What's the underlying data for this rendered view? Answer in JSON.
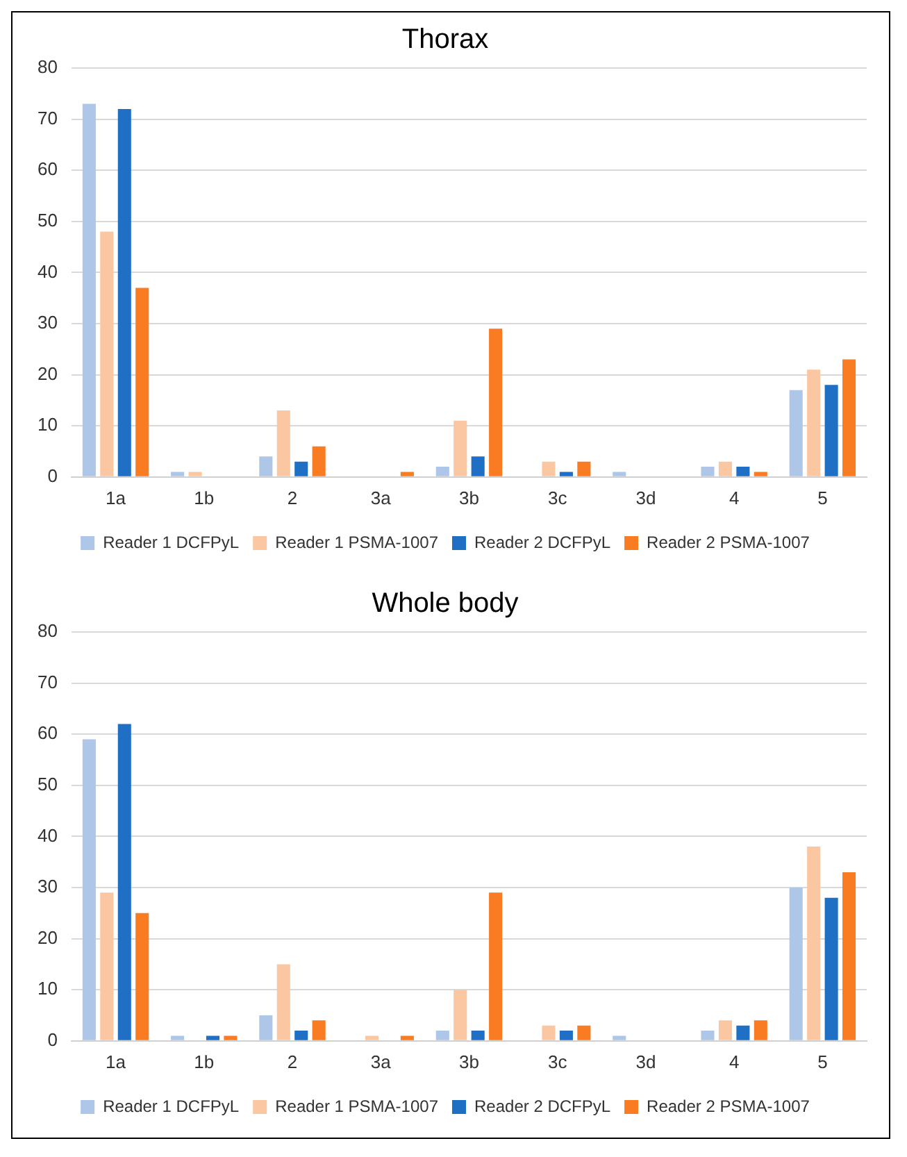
{
  "chart_data": [
    {
      "type": "bar",
      "title": "Thorax",
      "categories": [
        "1a",
        "1b",
        "2",
        "3a",
        "3b",
        "3c",
        "3d",
        "4",
        "5"
      ],
      "ylim": [
        0,
        80
      ],
      "yticks": [
        0,
        10,
        20,
        30,
        40,
        50,
        60,
        70,
        80
      ],
      "grid": "y",
      "legend": "bottom",
      "series": [
        {
          "name": "Reader 1 DCFPyL",
          "color": "#aec6e8",
          "values": [
            73,
            1,
            4,
            0,
            2,
            0,
            1,
            2,
            17
          ]
        },
        {
          "name": "Reader 1 PSMA-1007",
          "color": "#fbc7a3",
          "values": [
            48,
            1,
            13,
            0,
            11,
            3,
            0,
            3,
            21
          ]
        },
        {
          "name": "Reader 2 DCFPyL",
          "color": "#1f6fc4",
          "values": [
            72,
            0,
            3,
            0,
            4,
            1,
            0,
            2,
            18
          ]
        },
        {
          "name": "Reader 2 PSMA-1007",
          "color": "#f97b22",
          "values": [
            37,
            0,
            6,
            1,
            29,
            3,
            0,
            1,
            23
          ]
        }
      ]
    },
    {
      "type": "bar",
      "title": "Whole body",
      "categories": [
        "1a",
        "1b",
        "2",
        "3a",
        "3b",
        "3c",
        "3d",
        "4",
        "5"
      ],
      "ylim": [
        0,
        80
      ],
      "yticks": [
        0,
        10,
        20,
        30,
        40,
        50,
        60,
        70,
        80
      ],
      "grid": "y",
      "legend": "bottom",
      "series": [
        {
          "name": "Reader 1 DCFPyL",
          "color": "#aec6e8",
          "values": [
            59,
            1,
            5,
            0,
            2,
            0,
            1,
            2,
            30
          ]
        },
        {
          "name": "Reader 1 PSMA-1007",
          "color": "#fbc7a3",
          "values": [
            29,
            0,
            15,
            1,
            10,
            3,
            0,
            4,
            38
          ]
        },
        {
          "name": "Reader 2 DCFPyL",
          "color": "#1f6fc4",
          "values": [
            62,
            1,
            2,
            0,
            2,
            2,
            0,
            3,
            28
          ]
        },
        {
          "name": "Reader 2 PSMA-1007",
          "color": "#f97b22",
          "values": [
            25,
            1,
            4,
            1,
            29,
            3,
            0,
            4,
            33
          ]
        }
      ]
    }
  ]
}
